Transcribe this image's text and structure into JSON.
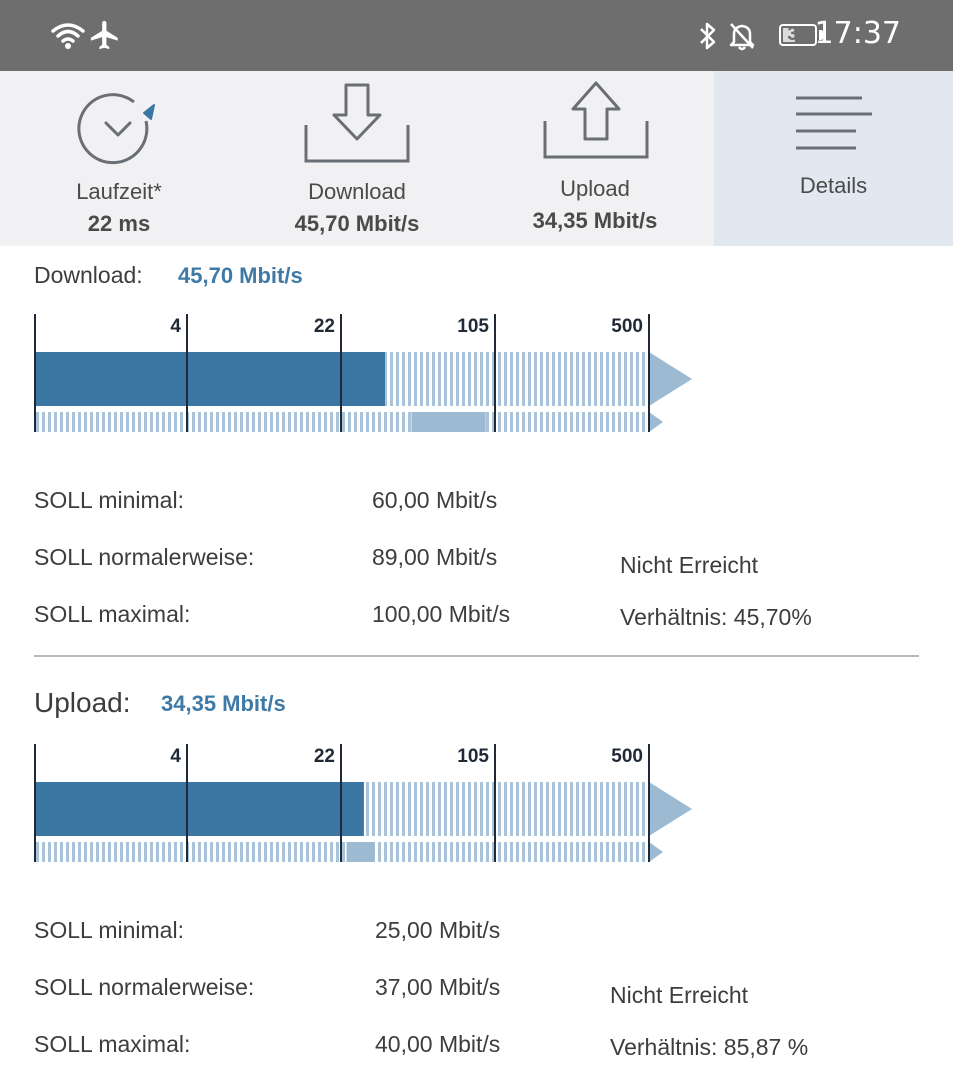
{
  "status_bar": {
    "time": "17:37",
    "battery": "39",
    "battery_level": 0.39,
    "icons": [
      "wifi-icon",
      "airplane-icon",
      "bluetooth-icon",
      "notifications-off-icon",
      "battery-icon"
    ]
  },
  "tabs": [
    {
      "label": "Laufzeit*",
      "value": "22 ms",
      "icon": "timer-icon"
    },
    {
      "label": "Download",
      "value": "45,70 Mbit/s",
      "icon": "download-icon"
    },
    {
      "label": "Upload",
      "value": "34,35 Mbit/s",
      "icon": "upload-icon"
    },
    {
      "label": "Details",
      "value": "",
      "icon": "menu-lines-icon",
      "active": true
    }
  ],
  "download": {
    "title": "Download:",
    "value": "45,70 Mbit/s",
    "measured": 45.7,
    "soll_min": 60,
    "soll_max": 100,
    "scale_ticks": [
      4,
      22,
      105,
      500
    ],
    "rows": [
      {
        "label": "SOLL minimal:",
        "value": "60,00 Mbit/s"
      },
      {
        "label": "SOLL normalerweise:",
        "value": "89,00 Mbit/s"
      },
      {
        "label": "SOLL maximal:",
        "value": "100,00 Mbit/s"
      }
    ],
    "status": "Nicht Erreicht",
    "ratio": "Verhältnis: 45,70%"
  },
  "upload": {
    "title": "Upload:",
    "value": "34,35 Mbit/s",
    "measured": 34.35,
    "soll_min": 25,
    "soll_max": 40,
    "scale_ticks": [
      4,
      22,
      105,
      500
    ],
    "rows": [
      {
        "label": "SOLL minimal:",
        "value": "25,00 Mbit/s"
      },
      {
        "label": "SOLL normalerweise:",
        "value": "37,00 Mbit/s"
      },
      {
        "label": "SOLL maximal:",
        "value": "40,00 Mbit/s"
      }
    ],
    "status": "Nicht Erreicht",
    "ratio": "Verhältnis: 85,87 %"
  },
  "colors": {
    "accent": "#3f7aa6",
    "bar_fill": "#3c77a4",
    "range_fill": "#9dbad3",
    "hatch": "#a9c3da",
    "status_bar": "#6e6e6e",
    "tab_bg": "#f1f1f3",
    "tab_active_bg": "#e2e8ef"
  }
}
